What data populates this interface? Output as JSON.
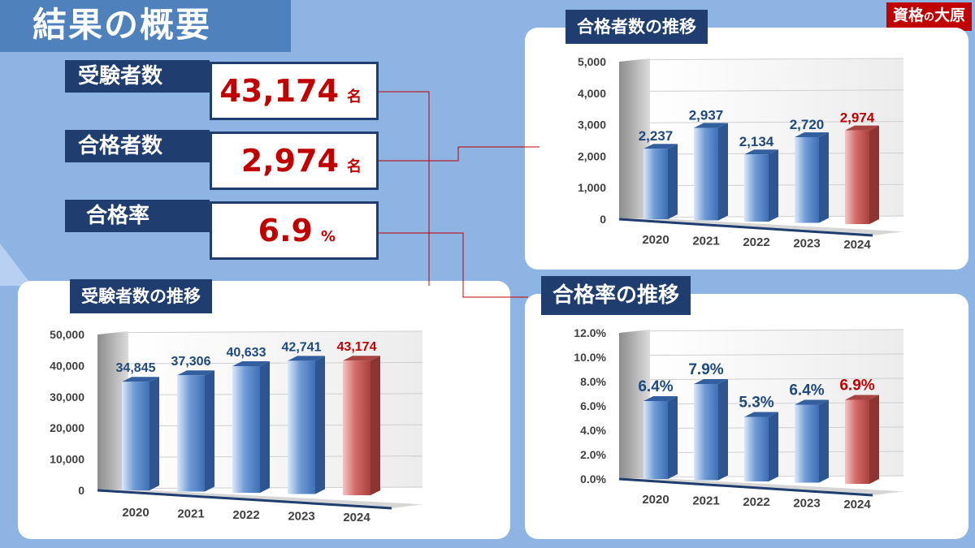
{
  "header": {
    "title": "結果の概要",
    "brand_pre": "資格",
    "brand_no": "の",
    "brand_post": "大原"
  },
  "stats": [
    {
      "label": "受験者数",
      "value": "43,174",
      "unit": "名"
    },
    {
      "label": "合格者数",
      "value": "2,974",
      "unit": "名"
    },
    {
      "label": "合格率",
      "value": "6.9",
      "unit": "%"
    }
  ],
  "panels": {
    "examinees": "受験者数の推移",
    "passers": "合格者数の推移",
    "rate": "合格率の推移"
  },
  "colors": {
    "blue_bar": "#3e6fb5",
    "red_bar": "#c0504d",
    "blue_label": "#1f497d",
    "red_label": "#c00000",
    "navy": "#1f3d6f",
    "panel_bg": "#ffffff",
    "page_bg": "#8db4e2"
  },
  "chart_data": [
    {
      "id": "examinees",
      "type": "bar",
      "title": "受験者数の推移",
      "categories": [
        "2020",
        "2021",
        "2022",
        "2023",
        "2024"
      ],
      "values": [
        34845,
        37306,
        40633,
        42741,
        43174
      ],
      "labels": [
        "34,845",
        "37,306",
        "40,633",
        "42,741",
        "43,174"
      ],
      "yticks": [
        "0",
        "10,000",
        "20,000",
        "30,000",
        "40,000",
        "50,000"
      ],
      "ylim": [
        0,
        50000
      ],
      "highlight": "2024"
    },
    {
      "id": "passers",
      "type": "bar",
      "title": "合格者数の推移",
      "categories": [
        "2020",
        "2021",
        "2022",
        "2023",
        "2024"
      ],
      "values": [
        2237,
        2937,
        2134,
        2720,
        2974
      ],
      "labels": [
        "2,237",
        "2,937",
        "2,134",
        "2,720",
        "2,974"
      ],
      "yticks": [
        "0",
        "1,000",
        "2,000",
        "3,000",
        "4,000",
        "5,000"
      ],
      "ylim": [
        0,
        5000
      ],
      "highlight": "2024"
    },
    {
      "id": "rate",
      "type": "bar",
      "title": "合格率の推移",
      "categories": [
        "2020",
        "2021",
        "2022",
        "2023",
        "2024"
      ],
      "values": [
        6.4,
        7.9,
        5.3,
        6.4,
        6.9
      ],
      "labels": [
        "6.4%",
        "7.9%",
        "5.3%",
        "6.4%",
        "6.9%"
      ],
      "yticks": [
        "0.0%",
        "2.0%",
        "4.0%",
        "6.0%",
        "8.0%",
        "10.0%",
        "12.0%"
      ],
      "ylim": [
        0,
        12
      ],
      "highlight": "2024"
    }
  ]
}
